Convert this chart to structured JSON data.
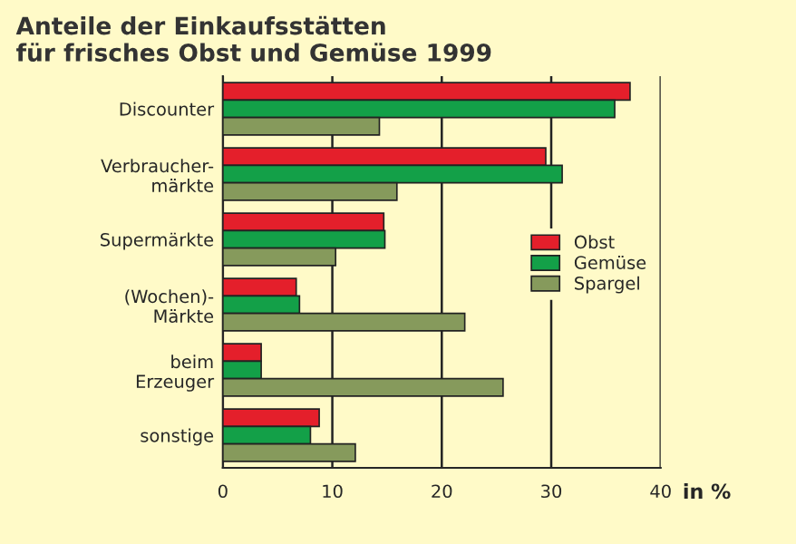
{
  "chart_data": {
    "type": "bar",
    "orientation": "horizontal",
    "title": "Anteile der Einkaufsstätten\nfür frisches Obst und Gemüse 1999",
    "xlabel": "in %",
    "categories": [
      "Discounter",
      "Verbraucher-\nmärkte",
      "Supermärkte",
      "(Wochen)-\nMärkte",
      "beim\nErzeuger",
      "sonstige"
    ],
    "series": [
      {
        "name": "Obst",
        "color": "#e41f2b",
        "values": [
          37.2,
          29.5,
          14.7,
          6.7,
          3.5,
          8.8
        ]
      },
      {
        "name": "Gemüse",
        "color": "#13a048",
        "values": [
          35.8,
          31.0,
          14.8,
          7.0,
          3.5,
          8.0
        ]
      },
      {
        "name": "Spargel",
        "color": "#869a5c",
        "values": [
          14.3,
          15.9,
          10.3,
          22.1,
          25.6,
          12.1
        ]
      }
    ],
    "xlim": [
      0,
      40
    ],
    "xticks": [
      0,
      10,
      20,
      30,
      40
    ],
    "grid": "x",
    "legend": "right"
  }
}
